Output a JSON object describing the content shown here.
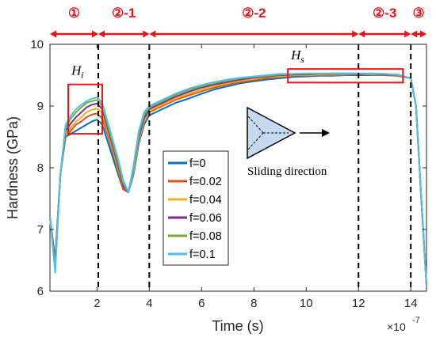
{
  "chart_data": {
    "type": "line",
    "title": "",
    "xlabel": "Time (s)",
    "ylabel": "Hardness (GPa)",
    "x_multiplier": "×10",
    "x_exponent": "-7",
    "xlim": [
      0.2,
      14.6
    ],
    "ylim": [
      6,
      10
    ],
    "xticks": [
      "2",
      "4",
      "6",
      "8",
      "10",
      "12",
      "14"
    ],
    "yticks": [
      "6",
      "7",
      "8",
      "9",
      "10"
    ],
    "grid": false,
    "legend_position": "center-left",
    "x": [
      0.2,
      0.4,
      0.6,
      0.8,
      1.0,
      1.2,
      1.4,
      1.6,
      1.8,
      2.0,
      2.2,
      2.5,
      2.8,
      3.0,
      3.2,
      3.4,
      3.6,
      3.8,
      4.0,
      4.5,
      5.0,
      5.5,
      6.0,
      6.5,
      7.0,
      7.5,
      8.0,
      8.5,
      9.0,
      9.5,
      10.0,
      10.5,
      11.0,
      11.5,
      12.0,
      12.5,
      13.0,
      13.5,
      14.0,
      14.2,
      14.4,
      14.6
    ],
    "series": [
      {
        "name": "f=0",
        "color": "#0072bd",
        "values": [
          7.2,
          6.5,
          7.9,
          8.5,
          8.55,
          8.6,
          8.65,
          8.7,
          8.75,
          8.78,
          8.7,
          8.3,
          7.9,
          7.65,
          7.6,
          7.9,
          8.4,
          8.7,
          8.85,
          8.95,
          9.05,
          9.12,
          9.2,
          9.27,
          9.32,
          9.37,
          9.4,
          9.43,
          9.45,
          9.47,
          9.48,
          9.49,
          9.49,
          9.5,
          9.5,
          9.5,
          9.5,
          9.49,
          9.45,
          9.0,
          7.5,
          6.1
        ]
      },
      {
        "name": "f=0.02",
        "color": "#d95319",
        "values": [
          7.2,
          6.4,
          7.9,
          8.5,
          8.6,
          8.7,
          8.75,
          8.82,
          8.86,
          8.88,
          8.8,
          8.4,
          7.95,
          7.65,
          7.6,
          7.95,
          8.45,
          8.75,
          8.9,
          9.0,
          9.1,
          9.17,
          9.24,
          9.3,
          9.35,
          9.39,
          9.42,
          9.45,
          9.47,
          9.49,
          9.49,
          9.5,
          9.5,
          9.51,
          9.51,
          9.51,
          9.5,
          9.49,
          9.45,
          9.0,
          7.5,
          6.1
        ]
      },
      {
        "name": "f=0.04",
        "color": "#edb120",
        "values": [
          7.2,
          6.4,
          7.9,
          8.55,
          8.65,
          8.75,
          8.82,
          8.9,
          8.94,
          8.96,
          8.88,
          8.45,
          8.0,
          7.7,
          7.6,
          7.95,
          8.45,
          8.75,
          8.92,
          9.02,
          9.12,
          9.2,
          9.27,
          9.33,
          9.37,
          9.41,
          9.44,
          9.47,
          9.48,
          9.5,
          9.5,
          9.51,
          9.51,
          9.51,
          9.52,
          9.51,
          9.51,
          9.5,
          9.45,
          9.0,
          7.5,
          6.1
        ]
      },
      {
        "name": "f=0.06",
        "color": "#7e2f8e",
        "values": [
          7.2,
          6.5,
          7.9,
          8.6,
          8.72,
          8.82,
          8.9,
          8.98,
          9.02,
          9.04,
          8.95,
          8.5,
          8.05,
          7.7,
          7.6,
          8.0,
          8.5,
          8.8,
          8.95,
          9.05,
          9.15,
          9.23,
          9.3,
          9.35,
          9.39,
          9.43,
          9.46,
          9.48,
          9.5,
          9.51,
          9.51,
          9.52,
          9.52,
          9.52,
          9.52,
          9.52,
          9.51,
          9.5,
          9.45,
          9.0,
          7.5,
          6.1
        ]
      },
      {
        "name": "f=0.08",
        "color": "#77ac30",
        "values": [
          7.2,
          6.4,
          7.9,
          8.65,
          8.8,
          8.9,
          8.98,
          9.05,
          9.08,
          9.1,
          9.0,
          8.55,
          8.1,
          7.75,
          7.6,
          8.0,
          8.55,
          8.85,
          8.98,
          9.08,
          9.18,
          9.26,
          9.32,
          9.37,
          9.41,
          9.45,
          9.47,
          9.49,
          9.51,
          9.52,
          9.52,
          9.52,
          9.53,
          9.53,
          9.53,
          9.52,
          9.52,
          9.5,
          9.45,
          9.0,
          7.5,
          6.1
        ]
      },
      {
        "name": "f=0.1",
        "color": "#4dbeee",
        "values": [
          7.2,
          6.3,
          7.9,
          8.7,
          8.85,
          8.95,
          9.02,
          9.08,
          9.12,
          9.14,
          9.05,
          8.6,
          8.15,
          7.8,
          7.6,
          8.05,
          8.6,
          8.9,
          9.0,
          9.1,
          9.2,
          9.28,
          9.34,
          9.39,
          9.43,
          9.46,
          9.48,
          9.5,
          9.52,
          9.52,
          9.53,
          9.53,
          9.53,
          9.53,
          9.53,
          9.53,
          9.52,
          9.51,
          9.45,
          9.0,
          7.5,
          6.1
        ]
      }
    ],
    "dividers_x": [
      2.05,
      4.0,
      12.0,
      14.0
    ],
    "phases": [
      {
        "label": "①",
        "x_start": 0.2,
        "x_end": 2.05
      },
      {
        "label": "②-1",
        "x_start": 2.05,
        "x_end": 4.0
      },
      {
        "label": "②-2",
        "x_start": 4.0,
        "x_end": 12.0
      },
      {
        "label": "②-3",
        "x_start": 12.0,
        "x_end": 14.0
      },
      {
        "label": "③",
        "x_start": 14.0,
        "x_end": 14.6
      }
    ],
    "annotations": [
      {
        "label": "H",
        "sub": "i",
        "box_x": [
          0.9,
          2.2
        ],
        "box_y": [
          8.55,
          9.35
        ]
      },
      {
        "label": "H",
        "sub": "s",
        "box_x": [
          9.3,
          13.7
        ],
        "box_y": [
          9.38,
          9.6
        ]
      }
    ],
    "inset_label": "Sliding direction",
    "accent_color": "#e8121b"
  }
}
